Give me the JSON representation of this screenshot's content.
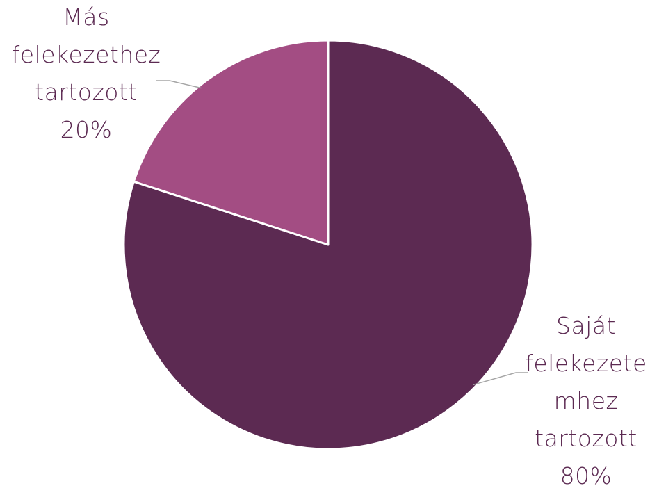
{
  "chart_data": {
    "type": "pie",
    "title": "",
    "start_angle_deg": 0,
    "direction": "clockwise",
    "slices": [
      {
        "name": "Saját felekezetéhez tartozott",
        "value": 80,
        "color": "#5c2a52",
        "label_lines": [
          "Saját",
          "felekezete",
          "mhez",
          "tartozott",
          "80%"
        ]
      },
      {
        "name": "Más felekezethez tartozott",
        "value": 20,
        "color": "#a34d83",
        "label_lines": [
          "Más",
          "felekezethez",
          "tartozott",
          "20%"
        ]
      }
    ],
    "slice_border_color": "#ffffff",
    "leader_line_color": "#a6a6a6",
    "legend": "none"
  }
}
